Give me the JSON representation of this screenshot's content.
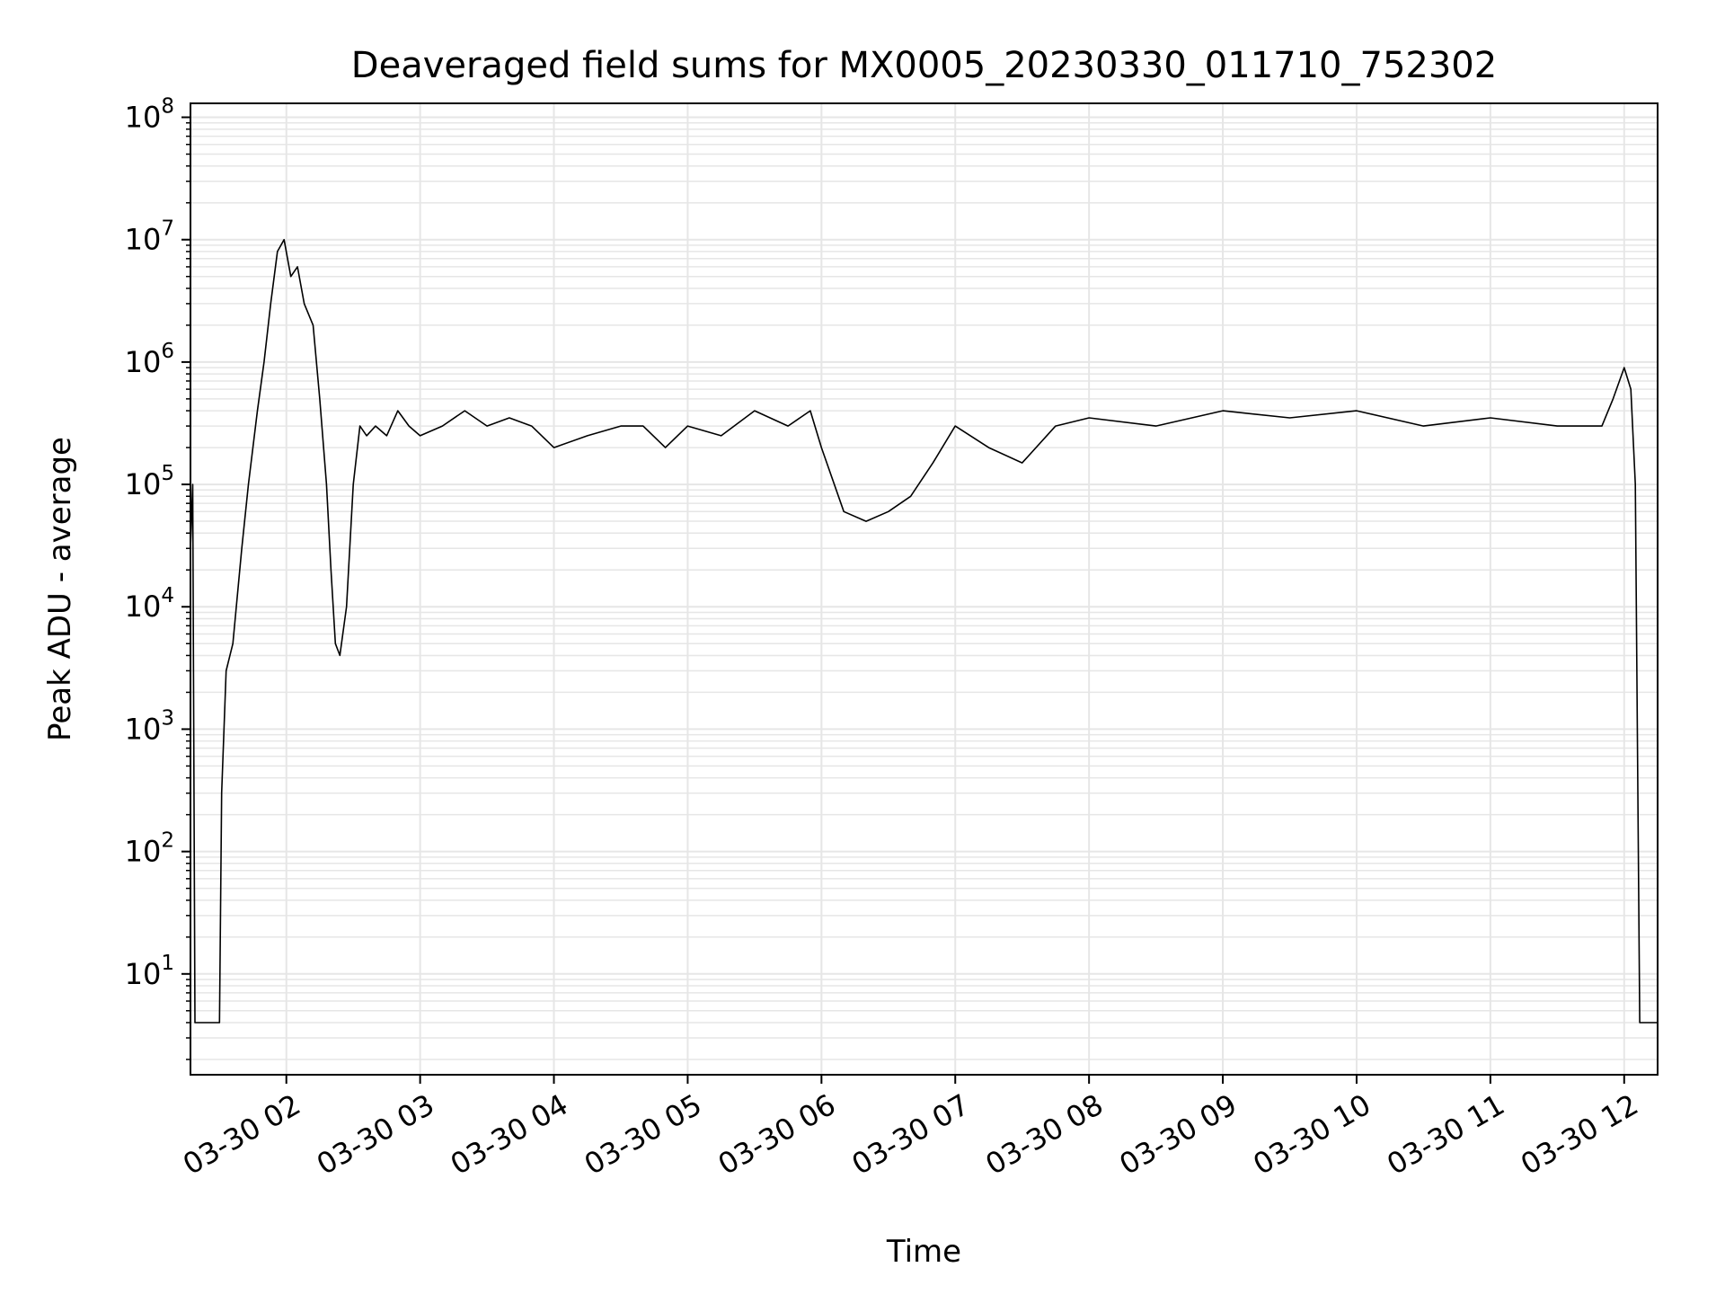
{
  "chart_data": {
    "type": "line",
    "title": "Deaveraged field sums for MX0005_20230330_011710_752302",
    "xlabel": "Time",
    "ylabel": "Peak ADU - average",
    "yscale": "log",
    "ylim": [
      1.5,
      130000000
    ],
    "xlim": [
      "2023-03-30 01:17",
      "2023-03-30 12:15"
    ],
    "grid": true,
    "line_color": "#000000",
    "grid_color": "#e6e6e6",
    "x_ticks": [
      "03-30 02",
      "03-30 03",
      "03-30 04",
      "03-30 05",
      "03-30 06",
      "03-30 07",
      "03-30 08",
      "03-30 09",
      "03-30 10",
      "03-30 11",
      "03-30 12"
    ],
    "y_ticks": [
      {
        "base": "10",
        "exp": "1",
        "value": 10
      },
      {
        "base": "10",
        "exp": "2",
        "value": 100
      },
      {
        "base": "10",
        "exp": "3",
        "value": 1000
      },
      {
        "base": "10",
        "exp": "4",
        "value": 10000
      },
      {
        "base": "10",
        "exp": "5",
        "value": 100000
      },
      {
        "base": "10",
        "exp": "6",
        "value": 1000000
      },
      {
        "base": "10",
        "exp": "7",
        "value": 10000000
      },
      {
        "base": "10",
        "exp": "8",
        "value": 100000000
      }
    ],
    "series": [
      {
        "x": [
          "2023-03-30 01:17",
          "2023-03-30 01:18",
          "2023-03-30 01:19",
          "2023-03-30 01:20",
          "2023-03-30 01:30",
          "2023-03-30 01:31",
          "2023-03-30 01:33",
          "2023-03-30 01:36",
          "2023-03-30 01:40",
          "2023-03-30 01:43",
          "2023-03-30 01:47",
          "2023-03-30 01:50",
          "2023-03-30 01:53",
          "2023-03-30 01:56",
          "2023-03-30 01:59",
          "2023-03-30 02:02",
          "2023-03-30 02:05",
          "2023-03-30 02:08",
          "2023-03-30 02:12",
          "2023-03-30 02:15",
          "2023-03-30 02:18",
          "2023-03-30 02:20",
          "2023-03-30 02:22",
          "2023-03-30 02:24",
          "2023-03-30 02:27",
          "2023-03-30 02:30",
          "2023-03-30 02:33",
          "2023-03-30 02:36",
          "2023-03-30 02:40",
          "2023-03-30 02:45",
          "2023-03-30 02:50",
          "2023-03-30 02:55",
          "2023-03-30 03:00",
          "2023-03-30 03:10",
          "2023-03-30 03:20",
          "2023-03-30 03:30",
          "2023-03-30 03:40",
          "2023-03-30 03:50",
          "2023-03-30 04:00",
          "2023-03-30 04:15",
          "2023-03-30 04:30",
          "2023-03-30 04:40",
          "2023-03-30 04:50",
          "2023-03-30 05:00",
          "2023-03-30 05:15",
          "2023-03-30 05:30",
          "2023-03-30 05:45",
          "2023-03-30 05:55",
          "2023-03-30 06:00",
          "2023-03-30 06:10",
          "2023-03-30 06:20",
          "2023-03-30 06:30",
          "2023-03-30 06:40",
          "2023-03-30 06:50",
          "2023-03-30 07:00",
          "2023-03-30 07:15",
          "2023-03-30 07:30",
          "2023-03-30 07:45",
          "2023-03-30 08:00",
          "2023-03-30 08:30",
          "2023-03-30 09:00",
          "2023-03-30 09:30",
          "2023-03-30 10:00",
          "2023-03-30 10:30",
          "2023-03-30 11:00",
          "2023-03-30 11:30",
          "2023-03-30 11:50",
          "2023-03-30 11:55",
          "2023-03-30 12:00",
          "2023-03-30 12:03",
          "2023-03-30 12:05",
          "2023-03-30 12:07",
          "2023-03-30 12:15"
        ],
        "y": [
          30000,
          100000,
          4,
          4,
          4,
          300,
          3000,
          5000,
          30000,
          100000,
          400000,
          1000000,
          3000000,
          8000000,
          10000000,
          5000000,
          6000000,
          3000000,
          2000000,
          500000,
          100000,
          20000,
          5000,
          4000,
          10000,
          100000,
          300000,
          250000,
          300000,
          250000,
          400000,
          300000,
          250000,
          300000,
          400000,
          300000,
          350000,
          300000,
          200000,
          250000,
          300000,
          300000,
          200000,
          300000,
          250000,
          400000,
          300000,
          400000,
          200000,
          60000,
          50000,
          60000,
          80000,
          150000,
          300000,
          200000,
          150000,
          300000,
          350000,
          300000,
          400000,
          350000,
          400000,
          300000,
          350000,
          300000,
          300000,
          500000,
          900000,
          600000,
          100000,
          4,
          4
        ]
      }
    ]
  }
}
